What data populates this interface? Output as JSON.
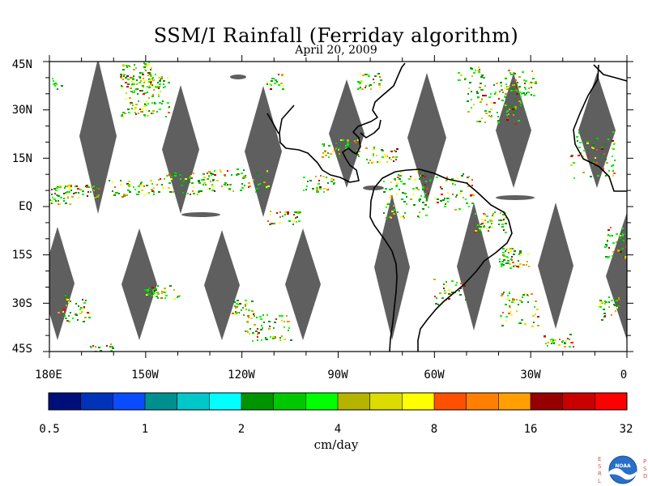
{
  "title": "SSM/I Rainfall (Ferriday algorithm)",
  "subtitle": "April 20, 2009",
  "map": {
    "lat_labels": [
      "45N",
      "30N",
      "15N",
      "EQ",
      "15S",
      "30S",
      "45S"
    ],
    "lon_labels": [
      "180E",
      "150W",
      "120W",
      "90W",
      "60W",
      "30W",
      "0"
    ],
    "land_color": "#ffffff",
    "no_data_color": "#5f5f5f",
    "coastline_color": "#000000"
  },
  "colorbar": {
    "units": "cm/day",
    "tick_labels": [
      "0.5",
      "1",
      "2",
      "4",
      "8",
      "16",
      "32"
    ],
    "colors": [
      "#000e7a",
      "#0033b8",
      "#0a4cff",
      "#008f8f",
      "#00c8c8",
      "#00ffff",
      "#009400",
      "#00c800",
      "#00ff00",
      "#b4b400",
      "#dcdc00",
      "#ffff00",
      "#ff5000",
      "#ff8000",
      "#ffa000",
      "#960000",
      "#c80000",
      "#ff0000"
    ]
  },
  "logo": {
    "left_letters": "ESRL",
    "right_letters": "PSD",
    "center_text": "NOAA"
  }
}
